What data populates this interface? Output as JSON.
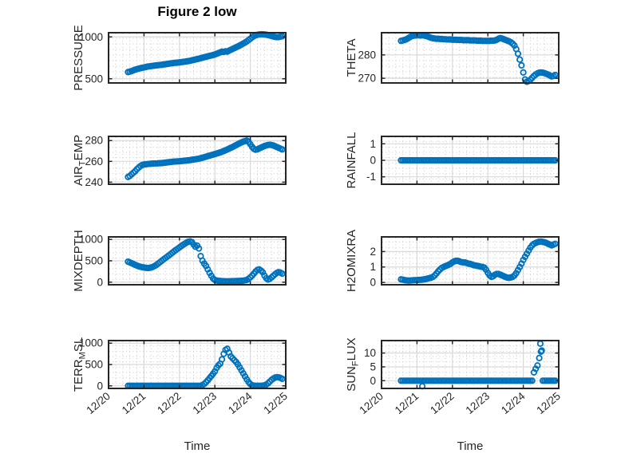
{
  "title": "Figure 2 low",
  "x_axis": {
    "label": "Time",
    "tick_labels": [
      "12/20",
      "12/21",
      "12/22",
      "12/23",
      "12/24",
      "12/25"
    ],
    "tick_positions": [
      0,
      1,
      2,
      3,
      4,
      5
    ]
  },
  "colors": {
    "marker": "#0072BD",
    "frame": "#262626",
    "grid_major": "#d9d9d9",
    "grid_minor": "#c9c9c9",
    "text": "#262626",
    "title": "#000000"
  },
  "chart_data": [
    {
      "name": "pressure",
      "type": "scatter",
      "marker": "o",
      "ylabel_parts": [
        {
          "t": "PRESSURE"
        }
      ],
      "ylim": [
        450,
        1050
      ],
      "yticks": [
        500,
        1000
      ],
      "xlim": [
        0,
        5
      ],
      "show_xticklabels": false,
      "x0": 0.55,
      "dx": 0.05,
      "y": [
        580,
        585,
        592,
        600,
        608,
        615,
        621,
        626,
        631,
        635,
        640,
        645,
        648,
        651,
        654,
        657,
        660,
        662,
        665,
        667,
        670,
        673,
        676,
        680,
        683,
        686,
        689,
        691,
        693,
        695,
        698,
        701,
        704,
        707,
        711,
        715,
        720,
        725,
        730,
        735,
        740,
        746,
        752,
        757,
        762,
        768,
        773,
        778,
        784,
        790,
        798,
        806,
        815,
        824,
        820,
        828,
        824,
        836,
        846,
        856,
        866,
        876,
        886,
        897,
        908,
        920,
        932,
        946,
        962,
        978,
        994,
        1008,
        1018,
        1025,
        1029,
        1031,
        1031,
        1029,
        1026,
        1022,
        1017,
        1011,
        1005,
        1000,
        997,
        998,
        1003,
        1007
      ],
      "extra_points": []
    },
    {
      "name": "theta",
      "type": "scatter",
      "marker": "o",
      "ylabel_parts": [
        {
          "t": "THETA"
        }
      ],
      "ylim": [
        268,
        289.5
      ],
      "yticks": [
        270,
        280
      ],
      "xlim": [
        0,
        5
      ],
      "show_xticklabels": false,
      "x0": 0.55,
      "dx": 0.05,
      "y": [
        286.0,
        286.2,
        286.4,
        286.7,
        287.1,
        287.6,
        288.0,
        288.2,
        288.3,
        288.4,
        288.4,
        288.3,
        288.4,
        288.3,
        288.1,
        287.9,
        287.6,
        287.3,
        287.1,
        287.0,
        286.9,
        286.9,
        286.8,
        286.8,
        286.7,
        286.7,
        286.6,
        286.6,
        286.6,
        286.5,
        286.5,
        286.5,
        286.4,
        286.4,
        286.4,
        286.3,
        286.3,
        286.3,
        286.3,
        286.2,
        286.2,
        286.2,
        286.2,
        286.1,
        286.1,
        286.1,
        286.0,
        286.0,
        286.0,
        286.0,
        286.0,
        286.1,
        286.1,
        286.2,
        286.5,
        286.9,
        287.2,
        287.0,
        286.7,
        286.4,
        286.1,
        285.8,
        285.4,
        284.8,
        284.0,
        282.5,
        280.5,
        278.0,
        275.5,
        272.5,
        269.5,
        268.5,
        268.8,
        269.4,
        270.2,
        271.0,
        271.6,
        272.1,
        272.4,
        272.5,
        272.4,
        272.2,
        271.9,
        271.6,
        271.2,
        270.8,
        271.0,
        271.4
      ],
      "extra_points": []
    },
    {
      "name": "air-temp",
      "type": "scatter",
      "marker": "o",
      "ylabel_parts": [
        {
          "t": "AIR"
        },
        {
          "t": "T",
          "sub": true
        },
        {
          "t": "EMP"
        }
      ],
      "ylim": [
        238,
        284
      ],
      "yticks": [
        240,
        260,
        280
      ],
      "xlim": [
        0,
        5
      ],
      "show_xticklabels": false,
      "x0": 0.55,
      "dx": 0.05,
      "y": [
        245,
        246,
        247.5,
        249,
        250.5,
        252.5,
        254,
        255.5,
        256.5,
        257,
        257.2,
        257.4,
        257.6,
        257.8,
        257.9,
        258,
        258,
        258.1,
        258.2,
        258.3,
        258.5,
        258.7,
        259,
        259.2,
        259.4,
        259.6,
        259.8,
        259.9,
        260,
        260.1,
        260.3,
        260.4,
        260.6,
        260.8,
        261,
        261.2,
        261.5,
        261.8,
        262,
        262.3,
        262.6,
        263,
        263.5,
        264,
        264.5,
        265,
        265.5,
        266,
        266.5,
        267,
        267.5,
        268,
        268.6,
        269.2,
        269.9,
        270.6,
        271.4,
        272.2,
        273,
        273.8,
        274.7,
        275.6,
        276.5,
        277.4,
        278.2,
        278.9,
        279.5,
        280,
        278.8,
        276.5,
        274,
        272,
        271.2,
        271.6,
        272.4,
        273.2,
        274,
        274.7,
        275.3,
        275.7,
        276,
        275.7,
        275.2,
        274.5,
        273.7,
        273,
        272.2,
        271.5
      ],
      "extra_points": []
    },
    {
      "name": "rainfall",
      "type": "scatter",
      "marker": "o",
      "ylabel_parts": [
        {
          "t": "RAINFALL"
        }
      ],
      "ylim": [
        -1.45,
        1.45
      ],
      "yticks": [
        -1,
        0,
        1
      ],
      "xlim": [
        0,
        5
      ],
      "show_xticklabels": false,
      "x0": 0.55,
      "dx": 0.05,
      "y": [
        0,
        0,
        0,
        0,
        0,
        0,
        0,
        0,
        0,
        0,
        0,
        0,
        0,
        0,
        0,
        0,
        0,
        0,
        0,
        0,
        0,
        0,
        0,
        0,
        0,
        0,
        0,
        0,
        0,
        0,
        0,
        0,
        0,
        0,
        0,
        0,
        0,
        0,
        0,
        0,
        0,
        0,
        0,
        0,
        0,
        0,
        0,
        0,
        0,
        0,
        0,
        0,
        0,
        0,
        0,
        0,
        0,
        0,
        0,
        0,
        0,
        0,
        0,
        0,
        0,
        0,
        0,
        0,
        0,
        0,
        0,
        0,
        0,
        0,
        0,
        0,
        0,
        0,
        0,
        0,
        0,
        0,
        0,
        0,
        0,
        0,
        0,
        0
      ],
      "extra_points": []
    },
    {
      "name": "mixdepth",
      "type": "scatter",
      "marker": "o",
      "ylabel_parts": [
        {
          "t": "MIXDEPTH"
        }
      ],
      "ylim": [
        -60,
        1060
      ],
      "yticks": [
        0,
        500,
        1000
      ],
      "xlim": [
        0,
        5
      ],
      "show_xticklabels": false,
      "x0": 0.55,
      "dx": 0.05,
      "y": [
        480,
        462,
        445,
        425,
        405,
        388,
        372,
        360,
        350,
        344,
        337,
        331,
        334,
        344,
        358,
        378,
        405,
        435,
        468,
        500,
        532,
        563,
        594,
        625,
        657,
        690,
        722,
        753,
        783,
        813,
        843,
        872,
        900,
        925,
        945,
        955,
        940,
        880,
        830,
        855,
        790,
        610,
        505,
        435,
        380,
        300,
        220,
        150,
        85,
        52,
        40,
        32,
        28,
        25,
        22,
        20,
        20,
        20,
        22,
        25,
        25,
        26,
        28,
        30,
        33,
        36,
        42,
        52,
        80,
        112,
        152,
        200,
        250,
        287,
        300,
        272,
        232,
        152,
        92,
        62,
        80,
        112,
        150,
        188,
        218,
        235,
        222,
        200
      ],
      "extra_points": []
    },
    {
      "name": "h2omixra",
      "type": "scatter",
      "marker": "o",
      "ylabel_parts": [
        {
          "t": "H2OMIXRA"
        }
      ],
      "ylim": [
        -0.15,
        2.95
      ],
      "yticks": [
        0,
        1,
        2
      ],
      "xlim": [
        0,
        5
      ],
      "show_xticklabels": false,
      "x0": 0.55,
      "dx": 0.05,
      "y": [
        0.2,
        0.18,
        0.15,
        0.13,
        0.12,
        0.12,
        0.13,
        0.14,
        0.15,
        0.15,
        0.16,
        0.17,
        0.18,
        0.2,
        0.22,
        0.25,
        0.28,
        0.31,
        0.36,
        0.45,
        0.58,
        0.72,
        0.84,
        0.94,
        1.0,
        1.05,
        1.1,
        1.15,
        1.21,
        1.3,
        1.36,
        1.4,
        1.4,
        1.36,
        1.32,
        1.3,
        1.3,
        1.26,
        1.22,
        1.2,
        1.16,
        1.12,
        1.1,
        1.07,
        1.05,
        1.02,
        1.0,
        0.96,
        0.82,
        0.62,
        0.46,
        0.36,
        0.4,
        0.5,
        0.55,
        0.55,
        0.5,
        0.45,
        0.4,
        0.35,
        0.31,
        0.3,
        0.32,
        0.36,
        0.45,
        0.6,
        0.8,
        1.0,
        1.22,
        1.46,
        1.66,
        1.86,
        2.06,
        2.26,
        2.4,
        2.5,
        2.56,
        2.6,
        2.64,
        2.65,
        2.62,
        2.6,
        2.56,
        2.5,
        2.45,
        2.4,
        2.45,
        2.5
      ],
      "extra_points": []
    },
    {
      "name": "terr-msl",
      "type": "scatter",
      "marker": "o",
      "ylabel_parts": [
        {
          "t": "TERR"
        },
        {
          "t": "M",
          "sub": true
        },
        {
          "t": "SL"
        }
      ],
      "ylim": [
        -60,
        1060
      ],
      "yticks": [
        0,
        500,
        1000
      ],
      "xlim": [
        0,
        5
      ],
      "show_xticklabels": true,
      "x0": 0.55,
      "dx": 0.05,
      "y": [
        0,
        0,
        0,
        0,
        0,
        0,
        0,
        0,
        0,
        0,
        0,
        0,
        0,
        0,
        0,
        0,
        0,
        0,
        0,
        0,
        0,
        0,
        0,
        0,
        0,
        0,
        0,
        0,
        0,
        0,
        0,
        0,
        0,
        0,
        0,
        0,
        0,
        0,
        0,
        0,
        0,
        0,
        20,
        45,
        85,
        130,
        180,
        232,
        285,
        340,
        420,
        480,
        520,
        620,
        750,
        840,
        868,
        780,
        690,
        645,
        600,
        558,
        500,
        432,
        362,
        292,
        222,
        152,
        90,
        42,
        15,
        5,
        2,
        0,
        0,
        0,
        5,
        12,
        30,
        60,
        100,
        140,
        170,
        195,
        205,
        200,
        185,
        165
      ],
      "extra_points": []
    },
    {
      "name": "sun-flux",
      "type": "scatter",
      "marker": "o",
      "ylabel_parts": [
        {
          "t": "SUN"
        },
        {
          "t": "F",
          "sub": true
        },
        {
          "t": "LUX"
        }
      ],
      "ylim": [
        -2.8,
        14.5
      ],
      "yticks": [
        0,
        5,
        10
      ],
      "xlim": [
        0,
        5
      ],
      "show_xticklabels": true,
      "x0": 0.55,
      "dx": 0.05,
      "y": [
        0,
        0,
        0,
        0,
        0,
        0,
        0,
        0,
        0,
        0,
        0,
        0,
        0,
        0,
        0,
        0,
        0,
        0,
        0,
        0,
        0,
        0,
        0,
        0,
        0,
        0,
        0,
        0,
        0,
        0,
        0,
        0,
        0,
        0,
        0,
        0,
        0,
        0,
        0,
        0,
        0,
        0,
        0,
        0,
        0,
        0,
        0,
        0,
        0,
        0,
        0,
        0,
        0,
        0,
        0,
        0,
        0,
        0,
        0,
        0,
        0,
        0,
        0,
        0,
        0,
        0,
        0,
        0,
        0,
        0,
        0,
        0,
        0,
        0,
        0,
        3.0,
        4.3,
        5.5,
        8.2,
        10.5,
        0,
        0,
        0,
        0,
        0,
        0,
        0,
        0
      ],
      "extra_points": [
        [
          1.15,
          -2.0
        ],
        [
          4.48,
          13.4
        ],
        [
          4.52,
          10.9
        ]
      ]
    }
  ]
}
